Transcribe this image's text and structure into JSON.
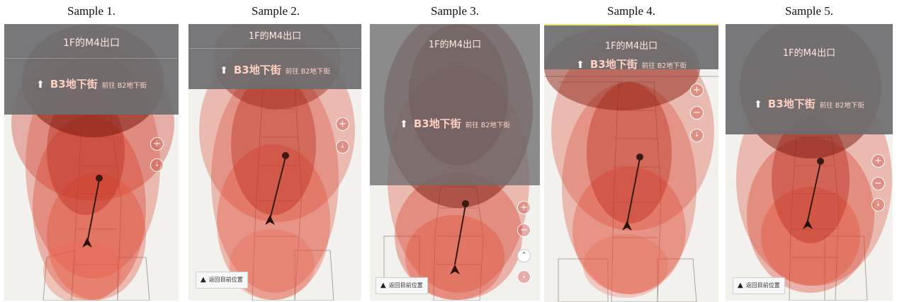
{
  "samples": [
    {
      "title": "Sample 1.",
      "header_label": "1F的M4出口",
      "direction": {
        "arrow_icon": "up-arrow-icon",
        "main": "B3地下街",
        "sub": "前往 B2地下街"
      },
      "controls": [
        "+",
        "⇣"
      ],
      "return_button": null
    },
    {
      "title": "Sample 2.",
      "header_label": "1F的M4出口",
      "direction": {
        "arrow_icon": "up-arrow-icon",
        "main": "B3地下街",
        "sub": "前往 B2地下街"
      },
      "controls": [
        "+",
        "⇣"
      ],
      "return_button": "返回目前位置"
    },
    {
      "title": "Sample 3.",
      "header_label": "1F的M4出口",
      "direction": {
        "arrow_icon": "up-arrow-icon",
        "main": "B3地下街",
        "sub": "前往 B2地下街"
      },
      "controls": [
        "+",
        "−",
        "⌃",
        "⇣"
      ],
      "return_button": "返回目前位置"
    },
    {
      "title": "Sample 4.",
      "header_label": "1F的M4出口",
      "direction": {
        "arrow_icon": "up-arrow-icon",
        "main": "B3地下街",
        "sub": "前往 B2地下街"
      },
      "controls": [
        "+",
        "−",
        "⇣"
      ],
      "return_button": null
    },
    {
      "title": "Sample 5.",
      "header_label": "1F的M4出口",
      "direction": {
        "arrow_icon": "up-arrow-icon",
        "main": "B3地下街",
        "sub": "前往 B2地下街"
      },
      "controls": [
        "+",
        "−",
        "⇣"
      ],
      "return_button": "返回目前位置"
    }
  ],
  "colors": {
    "heatmap": "#d73a22",
    "heatmap_dark": "#7a1a10",
    "panel": "#6e6e70",
    "label_text": "#ffd0c4"
  }
}
